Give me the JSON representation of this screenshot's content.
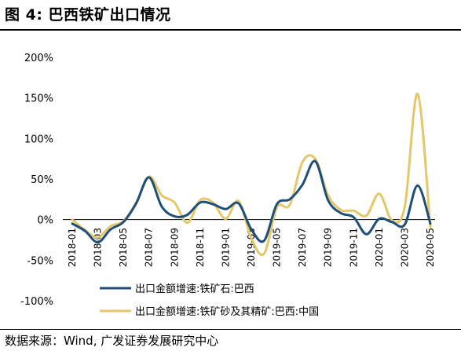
{
  "header": {
    "title": "图 4:  巴西铁矿出口情况"
  },
  "footer": {
    "source": "数据来源：Wind, 广发证券发展研究中心"
  },
  "chart_data": {
    "type": "line",
    "title": "图 4:  巴西铁矿出口情况",
    "xlabel": "",
    "ylabel": "",
    "ylim": [
      -100,
      200
    ],
    "y_ticks": [
      "200%",
      "150%",
      "100%",
      "50%",
      "0%",
      "-50%",
      "-100%"
    ],
    "y_tick_values": [
      200,
      150,
      100,
      50,
      0,
      -50,
      -100
    ],
    "x": [
      "2018-01",
      "2018-02",
      "2018-03",
      "2018-04",
      "2018-05",
      "2018-06",
      "2018-07",
      "2018-08",
      "2018-09",
      "2018-10",
      "2018-11",
      "2018-12",
      "2019-01",
      "2019-02",
      "2019-03",
      "2019-04",
      "2019-05",
      "2019-06",
      "2019-07",
      "2019-08",
      "2019-09",
      "2019-10",
      "2019-11",
      "2019-12",
      "2020-01",
      "2020-02",
      "2020-03",
      "2020-04",
      "2020-05"
    ],
    "x_tick_labels": [
      "2018-01",
      "2018-03",
      "2018-05",
      "2018-07",
      "2018-09",
      "2018-11",
      "2019-01",
      "2019-03",
      "2019-05",
      "2019-07",
      "2019-09",
      "2019-11",
      "2020-01",
      "2020-03",
      "2020-05"
    ],
    "legend_position": "bottom",
    "grid": false,
    "series": [
      {
        "name": "出口金额增速:铁矿石:巴西",
        "color": "#1f4e79",
        "values": [
          -5,
          -14,
          -28,
          -12,
          -3,
          20,
          52,
          16,
          4,
          6,
          21,
          19,
          13,
          20,
          -12,
          -26,
          19,
          25,
          43,
          72,
          24,
          8,
          3,
          -18,
          1,
          -3,
          -6,
          42,
          -5
        ]
      },
      {
        "name": "出口金额增速:铁矿砂及其精矿:巴西:中国",
        "color": "#e4c76b",
        "values": [
          0,
          -13,
          -22,
          -8,
          -2,
          21,
          53,
          30,
          21,
          -4,
          24,
          21,
          1,
          23,
          -23,
          -42,
          15,
          18,
          71,
          75,
          30,
          12,
          11,
          5,
          32,
          -1,
          16,
          155,
          -10
        ]
      }
    ]
  }
}
